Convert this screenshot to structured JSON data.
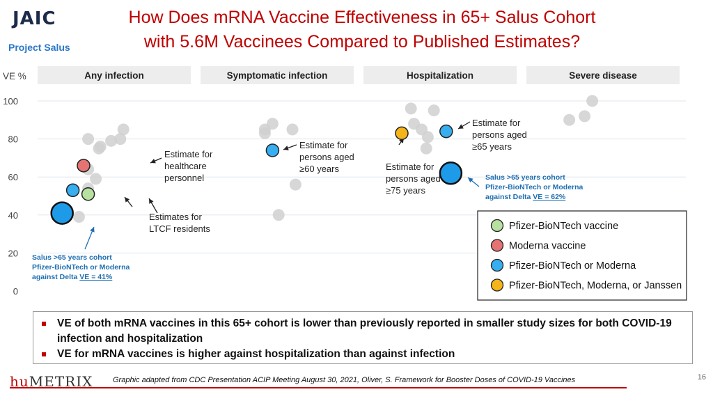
{
  "logo": {
    "mark": "JAIC",
    "subtitle": "Project Salus"
  },
  "title": {
    "line1": "How Does mRNA Vaccine Effectiveness in 65+ Salus Cohort",
    "line2": "with 5.6M Vaccinees Compared to Published Estimates?"
  },
  "chart_data": {
    "type": "scatter",
    "ylabel": "VE %",
    "yticks": [
      0,
      20,
      40,
      60,
      80,
      100
    ],
    "ylim": [
      0,
      100
    ],
    "grid": true,
    "panels": [
      "Any infection",
      "Symptomatic infection",
      "Hospitalization",
      "Severe disease"
    ],
    "background_points": [
      {
        "panel": 0,
        "offset": 0.56,
        "y": 85
      },
      {
        "panel": 0,
        "offset": 0.54,
        "y": 80
      },
      {
        "panel": 0,
        "offset": 0.48,
        "y": 79
      },
      {
        "panel": 0,
        "offset": 0.41,
        "y": 76
      },
      {
        "panel": 0,
        "offset": 0.4,
        "y": 75
      },
      {
        "panel": 0,
        "offset": 0.33,
        "y": 80
      },
      {
        "panel": 0,
        "offset": 0.33,
        "y": 64
      },
      {
        "panel": 0,
        "offset": 0.38,
        "y": 59
      },
      {
        "panel": 0,
        "offset": 0.33,
        "y": 54
      },
      {
        "panel": 0,
        "offset": 0.27,
        "y": 39
      },
      {
        "panel": 1,
        "offset": 0.42,
        "y": 85
      },
      {
        "panel": 1,
        "offset": 0.47,
        "y": 88
      },
      {
        "panel": 1,
        "offset": 0.42,
        "y": 83
      },
      {
        "panel": 1,
        "offset": 0.6,
        "y": 85
      },
      {
        "panel": 1,
        "offset": 0.62,
        "y": 56
      },
      {
        "panel": 1,
        "offset": 0.51,
        "y": 40
      },
      {
        "panel": 2,
        "offset": 0.31,
        "y": 96
      },
      {
        "panel": 2,
        "offset": 0.46,
        "y": 95
      },
      {
        "panel": 2,
        "offset": 0.33,
        "y": 88
      },
      {
        "panel": 2,
        "offset": 0.38,
        "y": 85
      },
      {
        "panel": 2,
        "offset": 0.42,
        "y": 81
      },
      {
        "panel": 2,
        "offset": 0.41,
        "y": 75
      },
      {
        "panel": 3,
        "offset": 0.43,
        "y": 100
      },
      {
        "panel": 3,
        "offset": 0.38,
        "y": 92
      },
      {
        "panel": 3,
        "offset": 0.28,
        "y": 90
      }
    ],
    "highlight_points": [
      {
        "panel": 0,
        "offset": 0.3,
        "y": 66,
        "group": "moderna"
      },
      {
        "panel": 0,
        "offset": 0.33,
        "y": 51,
        "group": "pfizer"
      },
      {
        "panel": 0,
        "offset": 0.23,
        "y": 53,
        "group": "either"
      },
      {
        "panel": 1,
        "offset": 0.47,
        "y": 74,
        "group": "either"
      },
      {
        "panel": 2,
        "offset": 0.25,
        "y": 83,
        "group": "any3"
      },
      {
        "panel": 2,
        "offset": 0.54,
        "y": 84,
        "group": "either"
      }
    ],
    "salus_points": [
      {
        "panel": 0,
        "offset": 0.16,
        "y": 41,
        "label": "41%"
      },
      {
        "panel": 2,
        "offset": 0.57,
        "y": 62,
        "label": "62%"
      }
    ],
    "annotations": [
      {
        "lines": [
          "Estimate for",
          "healthcare",
          "personnel"
        ]
      },
      {
        "lines": [
          "Estimates for",
          "LTCF residents"
        ]
      },
      {
        "lines": [
          "Estimate for",
          "persons aged",
          "≥60 years"
        ]
      },
      {
        "lines": [
          "Estimate for",
          "persons aged",
          "≥75 years"
        ]
      },
      {
        "lines": [
          "Estimate for",
          "persons aged",
          "≥65 years"
        ]
      }
    ],
    "salus_labels": [
      {
        "lines": [
          "Salus >65 years cohort",
          "Pfizer-BioNTech or Moderna"
        ],
        "prefix": "against Delta ",
        "ve": "VE = 41%"
      },
      {
        "lines": [
          "Salus >65 years cohort",
          "Pfizer-BioNTech or Moderna"
        ],
        "prefix": "against Delta ",
        "ve": "VE = 62%"
      }
    ],
    "legend": [
      {
        "label": "Pfizer-BioNTech vaccine",
        "color": "#b7e1a1"
      },
      {
        "label": "Moderna vaccine",
        "color": "#e57373"
      },
      {
        "label": "Pfizer-BioNTech or Moderna",
        "color": "#37aef0"
      },
      {
        "label": "Pfizer-BioNTech, Moderna, or Janssen",
        "color": "#f4b41a"
      }
    ],
    "colors": {
      "pfizer": "#b7e1a1",
      "moderna": "#e57373",
      "either": "#37aef0",
      "any3": "#f4b41a",
      "background": "#d0d0d0",
      "salus": "#1e9be8",
      "salus_text": "#1f6fb2",
      "panel_header": "#ededed"
    }
  },
  "bullets": [
    "VE of both mRNA vaccines in this 65+ cohort is lower than previously reported in smaller study sizes for both COVID-19 infection and hospitalization",
    "VE for mRNA vaccines is higher against hospitalization than against infection"
  ],
  "footer": {
    "brand_hu": "hu",
    "brand_metrix": "METRIX",
    "caption": "Graphic adapted from CDC Presentation ACIP Meeting August 30, 2021, Oliver, S. Framework for Booster Doses of COVID-19 Vaccines",
    "page": "16"
  }
}
